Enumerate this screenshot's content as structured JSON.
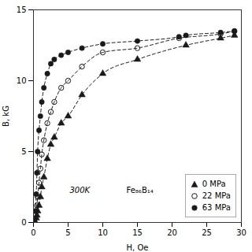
{
  "chart_data": {
    "type": "scatter",
    "xlabel": "H, Oe",
    "ylabel": "B, kG",
    "xlim": [
      0,
      30
    ],
    "ylim": [
      0,
      15
    ],
    "xticks": [
      0,
      5,
      10,
      15,
      20,
      25,
      30
    ],
    "yticks": [
      0,
      5,
      10,
      15
    ],
    "grid": false,
    "legend": "lower-right",
    "annotations": [
      "300K",
      "Fe₈₆B₁₄"
    ],
    "series": [
      {
        "name": "0 MPa",
        "color": "#1a1a1a",
        "marker": "triangle",
        "line_style": "dashed",
        "x": [
          0.2,
          0.4,
          0.5,
          0.6,
          0.8,
          1.0,
          1.2,
          1.5,
          2.0,
          2.5,
          3.0,
          4.0,
          5.0,
          7.0,
          10.0,
          15.0,
          22.0,
          27.0,
          29.0
        ],
        "values": [
          0.1,
          0.3,
          0.5,
          0.8,
          1.2,
          1.8,
          2.5,
          3.2,
          4.5,
          5.5,
          6.0,
          7.0,
          7.5,
          9.0,
          10.5,
          11.5,
          12.5,
          13.0,
          13.2
        ]
      },
      {
        "name": "22 MPa",
        "color": "#1a1a1a",
        "marker": "circle-open",
        "line_style": "dashed",
        "x": [
          0.2,
          0.4,
          0.5,
          0.6,
          0.8,
          1.0,
          1.2,
          1.5,
          2.0,
          2.5,
          3.0,
          4.0,
          5.0,
          7.0,
          10.0,
          15.0,
          21.0,
          27.0,
          29.0
        ],
        "values": [
          0.3,
          0.8,
          1.2,
          1.8,
          2.8,
          3.8,
          4.8,
          5.8,
          7.0,
          7.8,
          8.5,
          9.5,
          10.0,
          11.0,
          12.0,
          12.3,
          13.0,
          13.3,
          13.5
        ]
      },
      {
        "name": "63 MPa",
        "color": "#1a1a1a",
        "marker": "circle",
        "line_style": "dashed",
        "x": [
          0.2,
          0.4,
          0.5,
          0.6,
          0.8,
          1.0,
          1.2,
          1.5,
          2.0,
          2.5,
          3.0,
          4.0,
          5.0,
          7.0,
          10.0,
          15.0,
          21.0,
          22.0,
          27.0,
          29.0
        ],
        "values": [
          0.8,
          2.0,
          3.5,
          5.0,
          6.5,
          7.5,
          8.5,
          9.5,
          10.5,
          11.2,
          11.5,
          11.8,
          12.0,
          12.3,
          12.6,
          12.8,
          13.1,
          13.2,
          13.4,
          13.5
        ]
      }
    ]
  }
}
